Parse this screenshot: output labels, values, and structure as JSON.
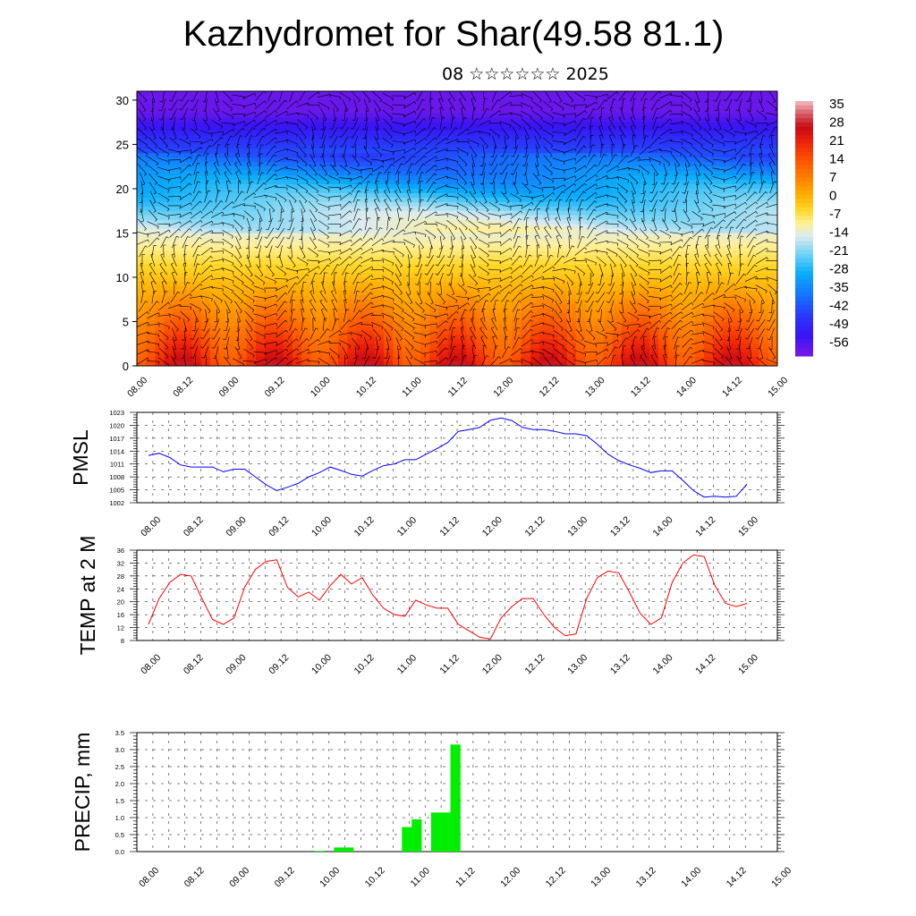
{
  "title": "Kazhydromet for Shar(49.58 81.1)",
  "subtitle": "08 ☆☆☆☆☆☆ 2025",
  "colorbar": {
    "labels": [
      "35",
      "28",
      "21",
      "14",
      "7",
      "0",
      "-7",
      "-14",
      "-21",
      "-28",
      "-35",
      "-42",
      "-49",
      "-56"
    ]
  },
  "chart_data": [
    {
      "type": "heatmap",
      "id": "cross-section",
      "x_tick_labels": [
        "08.00",
        "08.12",
        "09.00",
        "09.12",
        "10.00",
        "10.12",
        "11.00",
        "11.12",
        "12.00",
        "12.12",
        "13.00",
        "13.12",
        "14.00",
        "14.12",
        "15.00"
      ],
      "y_ticks": [
        0,
        5,
        10,
        15,
        20,
        25,
        30
      ],
      "ylim": [
        0,
        31
      ],
      "value_range": [
        -60,
        38
      ]
    },
    {
      "type": "line",
      "id": "pmsl",
      "ylabel": "PMSL",
      "x_tick_labels": [
        "08.00",
        "08.12",
        "09.00",
        "09.12",
        "10.00",
        "10.12",
        "11.00",
        "11.12",
        "12.00",
        "12.12",
        "13.00",
        "13.12",
        "14.00",
        "14.12",
        "15.00"
      ],
      "y_ticks": [
        1002,
        1005,
        1008,
        1011,
        1014,
        1017,
        1020,
        1023
      ],
      "ylim": [
        1002,
        1023
      ],
      "color": "#0000ff",
      "values": [
        1013,
        1013.5,
        1012.5,
        1010.8,
        1010.3,
        1010.3,
        1010.3,
        1009.2,
        1009.8,
        1009.8,
        1008,
        1006.2,
        1004.8,
        1005.6,
        1006.5,
        1008,
        1009,
        1010.3,
        1009.5,
        1008.6,
        1008.2,
        1009.5,
        1010.6,
        1011,
        1012,
        1012,
        1013.3,
        1014.6,
        1016,
        1018.6,
        1019,
        1019.5,
        1021.2,
        1021.7,
        1021.1,
        1019.5,
        1019,
        1019,
        1018.6,
        1018,
        1018,
        1017.6,
        1015.6,
        1013.3,
        1011.8,
        1010.8,
        1010,
        1009,
        1009.4,
        1009.4,
        1007.2,
        1004.8,
        1003.3,
        1003.5,
        1003.3,
        1003.5,
        1006.3
      ]
    },
    {
      "type": "line",
      "id": "temp2m",
      "ylabel": "TEMP at 2 M",
      "x_tick_labels": [
        "08.00",
        "08.12",
        "09.00",
        "09.12",
        "10.00",
        "10.12",
        "11.00",
        "11.12",
        "12.00",
        "12.12",
        "13.00",
        "13.12",
        "14.00",
        "14.12",
        "15.00"
      ],
      "y_ticks": [
        8,
        12,
        16,
        20,
        24,
        28,
        32,
        36
      ],
      "ylim": [
        8,
        36
      ],
      "color": "#ff0000",
      "values": [
        13,
        21,
        26,
        28.5,
        28,
        21,
        14.5,
        13,
        15,
        24.5,
        30,
        32.5,
        33,
        24.5,
        21.5,
        23,
        20.5,
        25,
        28.5,
        25.5,
        27.5,
        22,
        18,
        16,
        15.5,
        20.5,
        19,
        18,
        18,
        13,
        11,
        9,
        8.5,
        15,
        18.5,
        21,
        21,
        16,
        12,
        9.5,
        10,
        21,
        27.5,
        29.5,
        29,
        23,
        16.5,
        13,
        15,
        26,
        32,
        34.5,
        34,
        25,
        19.5,
        18.5,
        19.5
      ]
    },
    {
      "type": "bar",
      "id": "precip",
      "ylabel": "PRECIP, mm",
      "x_tick_labels": [
        "08.00",
        "08.12",
        "09.00",
        "09.12",
        "10.00",
        "10.12",
        "11.00",
        "11.12",
        "12.00",
        "12.12",
        "13.00",
        "13.12",
        "14.00",
        "14.12",
        "15.00"
      ],
      "y_ticks": [
        0.0,
        0.5,
        1.0,
        1.5,
        2.0,
        2.5,
        3.0,
        3.5
      ],
      "y_tick_labels": [
        "0.0",
        "0.5",
        "1.0",
        "1.5",
        "2.0",
        "2.5",
        "3.0",
        "3.5"
      ],
      "ylim": [
        0,
        3.5
      ],
      "color": "#00ee00",
      "values": [
        0,
        0,
        0,
        0,
        0,
        0,
        0,
        0,
        0,
        0,
        0,
        0,
        0,
        0,
        0,
        0,
        0,
        0,
        0.02,
        0,
        0.12,
        0.12,
        0,
        0,
        0,
        0,
        0,
        0.72,
        0.95,
        0,
        1.15,
        1.15,
        3.15,
        0,
        0,
        0,
        0,
        0,
        0,
        0,
        0,
        0,
        0,
        0,
        0,
        0,
        0,
        0,
        0,
        0,
        0,
        0,
        0,
        0,
        0,
        0,
        0,
        0
      ]
    }
  ]
}
